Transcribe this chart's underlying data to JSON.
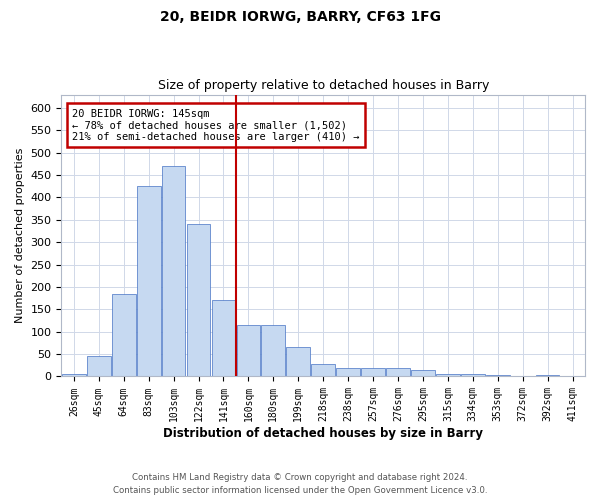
{
  "title1": "20, BEIDR IORWG, BARRY, CF63 1FG",
  "title2": "Size of property relative to detached houses in Barry",
  "xlabel": "Distribution of detached houses by size in Barry",
  "ylabel": "Number of detached properties",
  "categories": [
    "26sqm",
    "45sqm",
    "64sqm",
    "83sqm",
    "103sqm",
    "122sqm",
    "141sqm",
    "160sqm",
    "180sqm",
    "199sqm",
    "218sqm",
    "238sqm",
    "257sqm",
    "276sqm",
    "295sqm",
    "315sqm",
    "334sqm",
    "353sqm",
    "372sqm",
    "392sqm",
    "411sqm"
  ],
  "values": [
    5,
    45,
    185,
    425,
    470,
    340,
    170,
    115,
    115,
    65,
    28,
    20,
    20,
    20,
    14,
    5,
    5,
    3,
    1,
    4,
    1
  ],
  "bar_color": "#c6d9f1",
  "bar_edge_color": "#4472c4",
  "vline_color": "#c00000",
  "annotation_text": "20 BEIDR IORWG: 145sqm\n← 78% of detached houses are smaller (1,502)\n21% of semi-detached houses are larger (410) →",
  "annotation_box_color": "#c00000",
  "ylim": [
    0,
    630
  ],
  "yticks": [
    0,
    50,
    100,
    150,
    200,
    250,
    300,
    350,
    400,
    450,
    500,
    550,
    600
  ],
  "footer1": "Contains HM Land Registry data © Crown copyright and database right 2024.",
  "footer2": "Contains public sector information licensed under the Open Government Licence v3.0.",
  "bg_color": "#ffffff",
  "grid_color": "#d0d8e8",
  "vline_index": 6.5
}
